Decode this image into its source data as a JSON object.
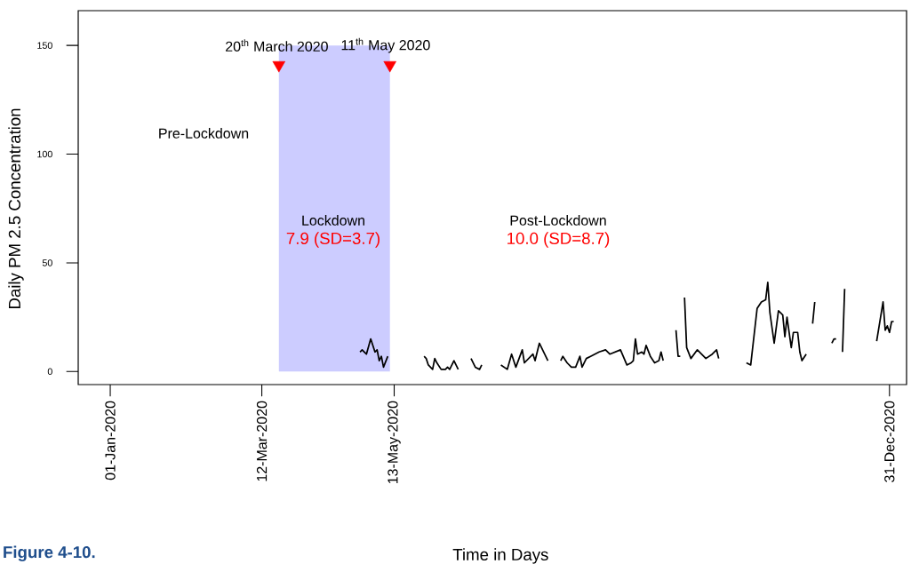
{
  "chart_data": {
    "type": "line",
    "xlabel": "Time in Days",
    "ylabel": "Daily PM 2.5 Concentration",
    "xlim": [
      "2019-12-17",
      "2021-01-08"
    ],
    "ylim": [
      -6,
      166
    ],
    "xticks": [
      {
        "value": "2020-01-01",
        "label": "01-Jan-2020"
      },
      {
        "value": "2020-03-12",
        "label": "12-Mar-2020"
      },
      {
        "value": "2020-05-13",
        "label": "13-May-2020"
      },
      {
        "value": "2020-12-31",
        "label": "31-Dec-2020"
      }
    ],
    "yticks": [
      0,
      50,
      100,
      150
    ],
    "bands": [
      {
        "axis": "x",
        "from": "2020-03-20",
        "to": "2020-05-11",
        "color": "#ccccff"
      }
    ],
    "series": [
      {
        "color": "#000000",
        "x": [
          "2020-04-27",
          "2020-04-28",
          "2020-04-29",
          "2020-04-30",
          "2020-05-02",
          "2020-05-04",
          "2020-05-05",
          "2020-05-06",
          "2020-05-07",
          "2020-05-08",
          "2020-05-10",
          "2020-05-11",
          "2020-05-27",
          "2020-05-28",
          "2020-05-29",
          "2020-05-31",
          "2020-06-01",
          "2020-06-02",
          "2020-06-04",
          "2020-06-06",
          "2020-06-07",
          "2020-06-08",
          "2020-06-10",
          "2020-06-12",
          "2020-06-13",
          "2020-06-18",
          "2020-06-20",
          "2020-06-22",
          "2020-06-23",
          "2020-06-24",
          "2020-07-02",
          "2020-07-05",
          "2020-07-07",
          "2020-07-09",
          "2020-07-12",
          "2020-07-13",
          "2020-07-17",
          "2020-07-18",
          "2020-07-20",
          "2020-07-22",
          "2020-07-24",
          "2020-07-25",
          "2020-07-30",
          "2020-07-31",
          "2020-08-02",
          "2020-08-04",
          "2020-08-06",
          "2020-08-08",
          "2020-08-09",
          "2020-08-11",
          "2020-08-13",
          "2020-08-17",
          "2020-08-20",
          "2020-08-22",
          "2020-08-27",
          "2020-08-30",
          "2020-09-01",
          "2020-09-02",
          "2020-09-03",
          "2020-09-04",
          "2020-09-06",
          "2020-09-07",
          "2020-09-08",
          "2020-09-10",
          "2020-09-12",
          "2020-09-14",
          "2020-09-15",
          "2020-09-16",
          "2020-09-17",
          "2020-09-22",
          "2020-09-23",
          "2020-09-24",
          "2020-09-25",
          "2020-09-26",
          "2020-09-27",
          "2020-09-29",
          "2020-10-02",
          "2020-10-06",
          "2020-10-09",
          "2020-10-11",
          "2020-10-12",
          "2020-10-13",
          "2020-10-25",
          "2020-10-27",
          "2020-10-30",
          "2020-11-01",
          "2020-11-03",
          "2020-11-04",
          "2020-11-05",
          "2020-11-07",
          "2020-11-09",
          "2020-11-11",
          "2020-11-12",
          "2020-11-13",
          "2020-11-15",
          "2020-11-16",
          "2020-11-18",
          "2020-11-19",
          "2020-11-20",
          "2020-11-22",
          "2020-11-23",
          "2020-11-25",
          "2020-11-26",
          "2020-11-27",
          "2020-12-04",
          "2020-12-05",
          "2020-12-06",
          "2020-12-07",
          "2020-12-09",
          "2020-12-10",
          "2020-12-11",
          "2020-12-25",
          "2020-12-28",
          "2020-12-29",
          "2020-12-30",
          "2020-12-31",
          "2021-01-01",
          "2021-01-02"
        ],
        "values": [
          9,
          10,
          9,
          8,
          15,
          9,
          10,
          5,
          7,
          2,
          7,
          null,
          7,
          6,
          3,
          1,
          6,
          4,
          1,
          1,
          2,
          1,
          5,
          1,
          null,
          6,
          2,
          1,
          3,
          null,
          3,
          1,
          8,
          2,
          10,
          4,
          8,
          5,
          13,
          9,
          5,
          null,
          5,
          7,
          4,
          2,
          2,
          7,
          2,
          6,
          7,
          9,
          10,
          8,
          10,
          3,
          4,
          5,
          15,
          8,
          9,
          8,
          12,
          7,
          4,
          5,
          9,
          5,
          null,
          19,
          7,
          7,
          null,
          34,
          11,
          6,
          10,
          6,
          8,
          10,
          6,
          null,
          4,
          3,
          29,
          32,
          33,
          41,
          27,
          13,
          28,
          26,
          16,
          25,
          11,
          18,
          18,
          9,
          5,
          8,
          null,
          22,
          32,
          null,
          13,
          15,
          15,
          null,
          9,
          38,
          null,
          14,
          32,
          19,
          21,
          18,
          23,
          23
        ]
      },
      {
        "type": "scatter",
        "color": "#ff0000",
        "marker": "triangle",
        "x": [
          "2020-03-20",
          "2020-05-11"
        ],
        "values": [
          141,
          141
        ]
      }
    ],
    "annotations": [
      {
        "text": "20$^{th}$ March 2020",
        "x": "2020-03-19",
        "y": 150
      },
      {
        "text": "11$^{th}$ May 2020",
        "x": "2020-05-09",
        "y": 150
      },
      "Pre-Lockdown",
      "Lockdown",
      "7.9 (SD=3.7)",
      "Post-Lockdown",
      "10.0 (SD=8.7)",
      "Figure 4-10."
    ]
  }
}
